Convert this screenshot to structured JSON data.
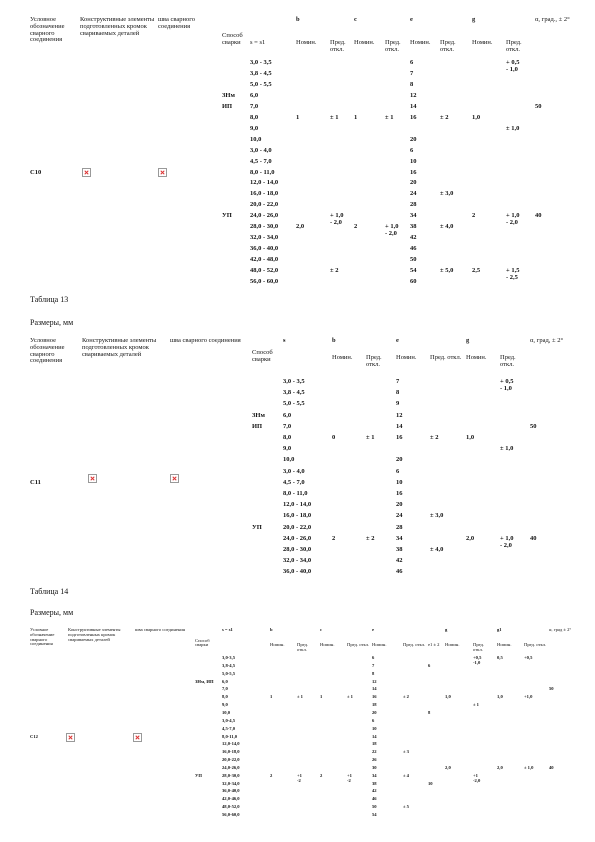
{
  "tables": [
    {
      "head": {
        "label": "Условное обозначение сварного соединения",
        "elements": "Конструктивные элементы подготовленных кромок свариваемых деталей",
        "seam": "шва сварного соединения",
        "method": "Способ сварки",
        "b": "b",
        "c": "c",
        "e": "e",
        "g": "g",
        "alpha": "α, град., ± 2°"
      },
      "sub": {
        "s": "s = s1",
        "b": "Номин.",
        "b_tol": "Пред. откл.",
        "c": "Номин.",
        "c_tol": "Пред. откл.",
        "e": "Номин.",
        "e_tol": "Пред. откл.",
        "g": "Номин.",
        "g_tol": "Пред. откл."
      },
      "rows": [
        {
          "s": "3,0 - 3,5",
          "e": "6",
          "g_tol": "+ 0,5\n- 1,0"
        },
        {
          "s": "3,8 - 4,5",
          "e": "7"
        },
        {
          "s": "5,0 - 5,5",
          "e": "8"
        },
        {
          "method": "ЗНм",
          "s": "6,0",
          "e": "12"
        },
        {
          "method": "ИП",
          "s": "7,0",
          "e": "14",
          "alpha": "50"
        },
        {
          "s": "8,0",
          "b": "1",
          "b_tol": "± 1",
          "c": "1",
          "c_tol": "± 1",
          "e": "16",
          "e_tol": "± 2",
          "g": "1,0"
        },
        {
          "s": "9,0",
          "g_tol": "± 1,0"
        },
        {
          "s": "10,0",
          "e": "20"
        },
        {
          "s": "3,0 - 4,0",
          "e": "6"
        },
        {
          "s": "4,5 - 7,0",
          "e": "10"
        },
        {
          "label": "С10",
          "s": "8,0 - 11,0",
          "e": "16"
        },
        {
          "s": "12,0 - 14,0",
          "e": "20"
        },
        {
          "s": "16,0 - 18,0",
          "e": "24",
          "e_tol": "± 3,0"
        },
        {
          "s": "20,0 - 22,0",
          "e": "28"
        },
        {
          "method": "УП",
          "s": "24,0 - 26,0",
          "b_tol": "+ 1,0\n- 2,0",
          "e": "34",
          "g": "2",
          "g_tol": "+ 1,0\n- 2,0",
          "alpha": "40"
        },
        {
          "s": "28,0 - 30,0",
          "b": "2,0",
          "c": "2",
          "c_tol": "+ 1,0\n- 2,0",
          "e": "38",
          "e_tol": "± 4,0"
        },
        {
          "s": "32,0 - 34,0",
          "e": "42"
        },
        {
          "s": "36,0 - 40,0",
          "e": "46"
        },
        {
          "s": "42,0 - 48,0",
          "e": "50"
        },
        {
          "s": "48,0 - 52,0",
          "b_tol": "± 2",
          "e": "54",
          "e_tol": "± 5,0",
          "g": "2,5",
          "g_tol": "+ 1,5\n- 2,5"
        },
        {
          "s": "56,0 - 60,0",
          "e": "60"
        }
      ]
    },
    {
      "head": {
        "label": "Условное обозначение сварного соединения",
        "elements": "Конструктивные элементы подготовленных кромок свариваемых деталей",
        "seam": "шва сварного соединения",
        "method": "Способ сварки",
        "s": "s",
        "b": "b",
        "e": "e",
        "g": "g",
        "alpha": "α, град, ± 2°"
      },
      "sub": {
        "b": "Номин.",
        "b_tol": "Пред. откл.",
        "e": "Номин.",
        "e_tol": "Пред. откл.",
        "g": "Номин.",
        "g_tol": "Пред. откл."
      },
      "rows": [
        {
          "s": "3,0 - 3,5",
          "e": "7",
          "g_tol": "+ 0,5\n- 1,0"
        },
        {
          "s": "3,8 - 4,5",
          "e": "8"
        },
        {
          "s": "5,0 - 5,5",
          "e": "9"
        },
        {
          "method": "ЗНм",
          "s": "6,0",
          "e": "12"
        },
        {
          "method": "ИП",
          "s": "7,0",
          "e": "14",
          "alpha": "50"
        },
        {
          "s": "8,0",
          "b": "0",
          "b_tol": "± 1",
          "e": "16",
          "e_tol": "± 2",
          "g": "1,0"
        },
        {
          "s": "9,0",
          "g_tol": "± 1,0"
        },
        {
          "s": "10,0",
          "e": "20"
        },
        {
          "s": "3,0 - 4,0",
          "e": "6"
        },
        {
          "label": "С11",
          "s": "4,5 - 7,0",
          "e": "10"
        },
        {
          "s": "8,0 - 11,0",
          "e": "16"
        },
        {
          "s": "12,0 - 14,0",
          "e": "20"
        },
        {
          "s": "16,0 - 18,0",
          "e": "24",
          "e_tol": "± 3,0"
        },
        {
          "method": "УП",
          "s": "20,0 - 22,0",
          "e": "28"
        },
        {
          "s": "24,0 - 26,0",
          "b": "2",
          "b_tol": "± 2",
          "e": "34",
          "g": "2,0",
          "g_tol": "+ 1,0\n- 2,0",
          "alpha": "40"
        },
        {
          "s": "28,0 - 30,0",
          "e": "38",
          "e_tol": "± 4,0"
        },
        {
          "s": "32,0 - 34,0",
          "e": "42"
        },
        {
          "s": "36,0 - 40,0",
          "e": "46"
        }
      ]
    },
    {
      "head": {
        "label": "Условное обозначение сварного соединения",
        "elements": "Конструктивные элементы подготовленных кромок свариваемых деталей",
        "seam": "шва сварного соединения",
        "method": "Способ сварки",
        "s": "s = s1",
        "b": "b",
        "c": "c",
        "e": "e",
        "g": "g",
        "g1": "g1",
        "alpha": "α, град ± 2°"
      },
      "sub": {
        "b": "Номин.",
        "b_tol": "Пред. откл.",
        "c": "Номин.",
        "c_tol": "Пред. откл.",
        "e": "Номин.",
        "e_tol": "Пред. откл.",
        "e1": "e1 ± 2",
        "g": "Номин.",
        "g_tol": "Пред. откл.",
        "g1": "Номин.",
        "g1_tol": "Пред. откл."
      },
      "rows": [
        {
          "s": "3,0-3,5",
          "e": "6",
          "g_tol": "+0,5\n-1,0",
          "g1": "0,5",
          "g1_tol": "+0,5"
        },
        {
          "s": "3,8-4,5",
          "e": "7",
          "e1": "6"
        },
        {
          "s": "5,0-5,5",
          "e": "8"
        },
        {
          "method": "ЗНм, ИП",
          "s": "6,0",
          "e": "12"
        },
        {
          "s": "7,0",
          "e": "14",
          "alpha": "50"
        },
        {
          "s": "8,0",
          "b": "1",
          "b_tol": "± 1",
          "c": "1",
          "c_tol": "± 1",
          "e": "16",
          "e_tol": "± 2",
          "g": "1,0",
          "g1": "1,0",
          "g1_tol": "+1,0"
        },
        {
          "s": "9,0",
          "e": "18",
          "g_tol": "± 1"
        },
        {
          "s": "10,0",
          "e": "20",
          "e1": "8"
        },
        {
          "s": "3,0-4,5",
          "e": "6"
        },
        {
          "s": "4,5-7,0",
          "e": "10"
        },
        {
          "label": "С12",
          "s": "8,0-11,0",
          "e": "14"
        },
        {
          "s": "12,0-14,0",
          "e": "18"
        },
        {
          "s": "16,0-18,0",
          "e": "22",
          "e_tol": "± 3"
        },
        {
          "s": "20,0-22,0",
          "e": "26"
        },
        {
          "s": "24,0-26,0",
          "e": "30",
          "g": "2,0",
          "g1": "2,0",
          "g1_tol": "± 1,0",
          "alpha": "40"
        },
        {
          "method": "УП",
          "s": "28,0-30,0",
          "b": "2",
          "b_tol": "+1\n-2",
          "c": "2",
          "c_tol": "+1\n-2",
          "e": "34",
          "e_tol": "± 4",
          "g_tol": "+1\n-2,0"
        },
        {
          "s": "32,0-34,0",
          "e": "38",
          "e1": "10"
        },
        {
          "s": "36,0-40,0",
          "e": "42"
        },
        {
          "s": "42,0-46,0",
          "e": "46"
        },
        {
          "s": "48,0-52,0",
          "e": "50",
          "e_tol": "± 5"
        },
        {
          "s": "56,0-60,0",
          "e": "54"
        }
      ]
    }
  ],
  "captions": [
    {
      "table": "Таблица 13",
      "units": "Размеры, мм"
    },
    {
      "table": "Таблица 14",
      "units": "Размеры, мм"
    }
  ]
}
